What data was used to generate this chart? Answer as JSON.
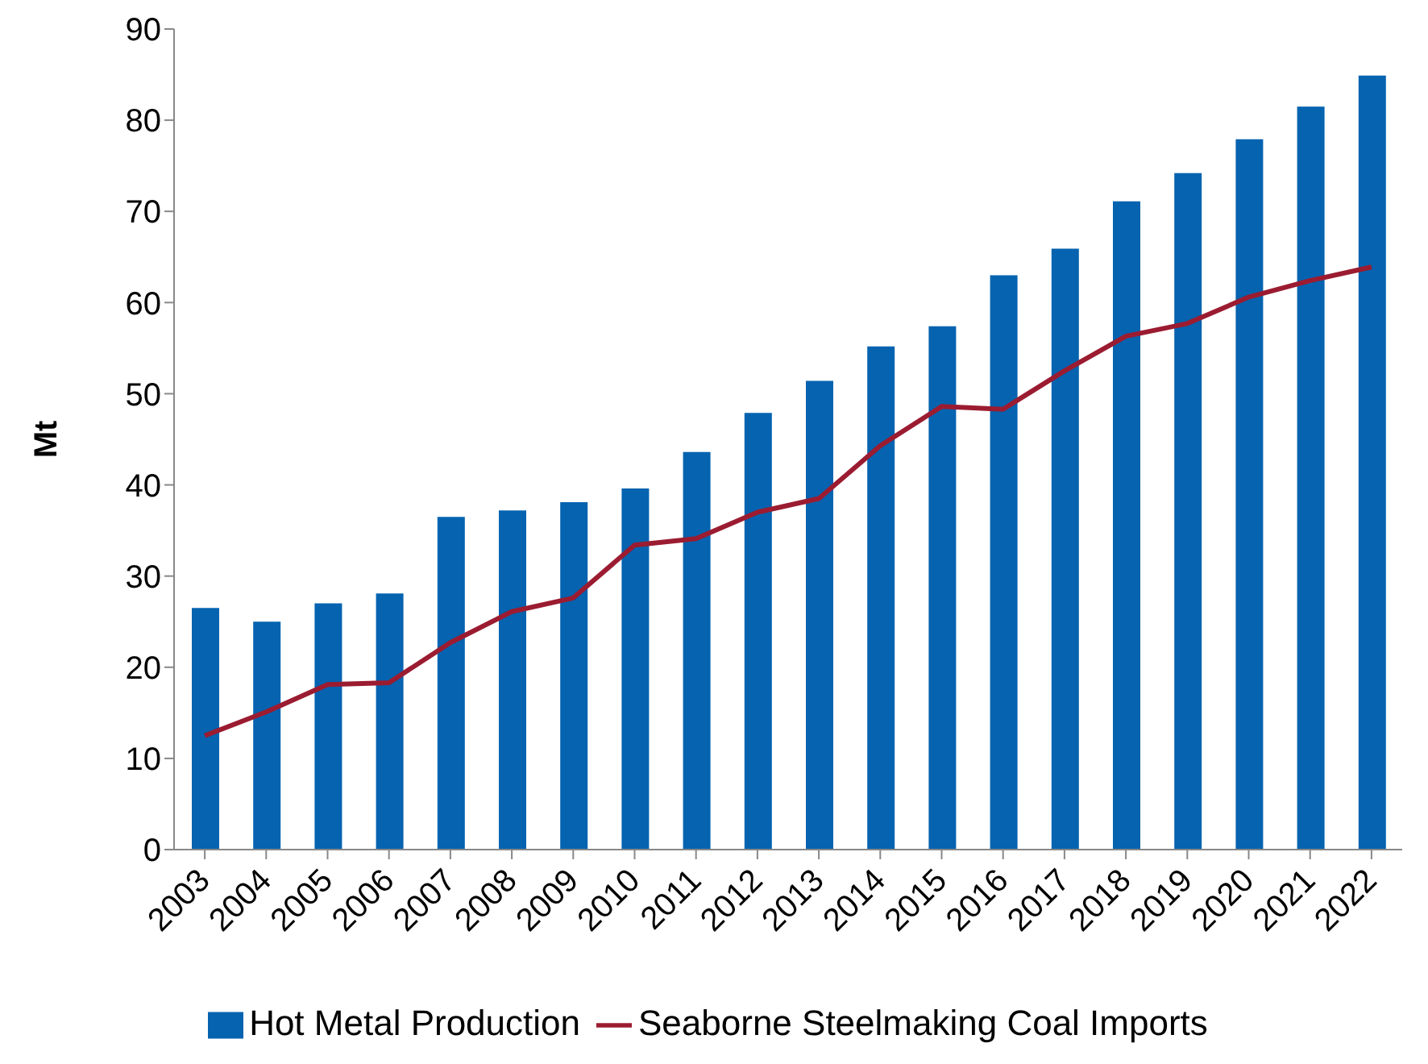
{
  "chart_data": {
    "type": "bar",
    "ylabel": "Mt",
    "categories": [
      "2003",
      "2004",
      "2005",
      "2006",
      "2007",
      "2008",
      "2009",
      "2010",
      "2011",
      "2012",
      "2013",
      "2014",
      "2015",
      "2016",
      "2017",
      "2018",
      "2019",
      "2020",
      "2021",
      "2022"
    ],
    "series": [
      {
        "name": "Hot Metal Production",
        "color": "#0563b0",
        "values": [
          26.5,
          25.0,
          27.0,
          28.1,
          36.5,
          37.2,
          38.1,
          39.6,
          43.6,
          47.9,
          51.4,
          55.2,
          57.4,
          63.0,
          65.9,
          71.1,
          74.2,
          77.9,
          81.5,
          84.9
        ]
      },
      {
        "name": "Seaborne Steelmaking Coal Imports",
        "type": "line",
        "color": "#9b1c31",
        "values": [
          12.5,
          15.1,
          18.1,
          18.3,
          22.7,
          26.1,
          27.6,
          33.4,
          34.1,
          37.0,
          38.5,
          44.3,
          48.6,
          48.3,
          52.5,
          56.3,
          57.7,
          60.6,
          62.4,
          63.9
        ]
      }
    ],
    "ylim": [
      0,
      90
    ],
    "yticks": [
      0,
      10,
      20,
      30,
      40,
      50,
      60,
      70,
      80,
      90
    ],
    "legend": "bottom",
    "marker": "none",
    "line_style": "solid"
  }
}
